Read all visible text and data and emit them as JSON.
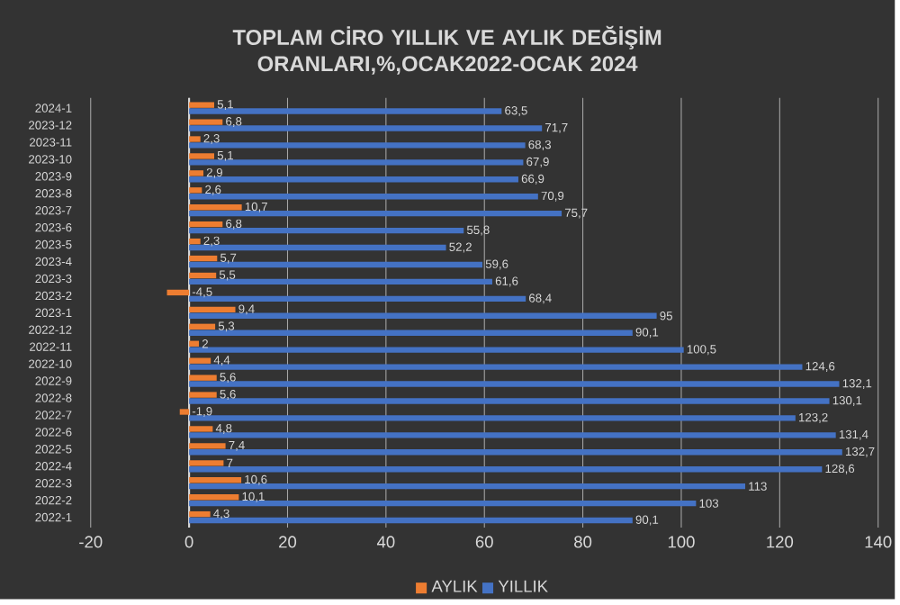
{
  "chart_data": {
    "type": "bar",
    "orientation": "horizontal",
    "title": "TOPLAM CİRO YILLIK VE AYLIK DEĞİŞİM ORANLARI,%,OCAK2022-OCAK 2024",
    "categories": [
      "2024-1",
      "2023-12",
      "2023-11",
      "2023-10",
      "2023-9",
      "2023-8",
      "2023-7",
      "2023-6",
      "2023-5",
      "2023-4",
      "2023-3",
      "2023-2",
      "2023-1",
      "2022-12",
      "2022-11",
      "2022-10",
      "2022-9",
      "2022-8",
      "2022-7",
      "2022-6",
      "2022-5",
      "2022-4",
      "2022-3",
      "2022-2",
      "2022-1"
    ],
    "series": [
      {
        "name": "AYLIK",
        "color": "#ed7d31",
        "values": [
          5.1,
          6.8,
          2.3,
          5.1,
          2.9,
          2.6,
          10.7,
          6.8,
          2.3,
          5.7,
          5.5,
          -4.5,
          9.4,
          5.3,
          2,
          4.4,
          5.6,
          5.6,
          -1.9,
          4.8,
          7.4,
          7,
          10.6,
          10.1,
          4.3
        ],
        "value_labels": [
          "5,1",
          "6,8",
          "2,3",
          "5,1",
          "2,9",
          "2,6",
          "10,7",
          "6,8",
          "2,3",
          "5,7",
          "5,5",
          "-4,5",
          "9,4",
          "5,3",
          "2",
          "4,4",
          "5,6",
          "5,6",
          "-1,9",
          "4,8",
          "7,4",
          "7",
          "10,6",
          "10,1",
          "4,3"
        ]
      },
      {
        "name": "YILLIK",
        "color": "#4472c4",
        "values": [
          63.5,
          71.7,
          68.3,
          67.9,
          66.9,
          70.9,
          75.7,
          55.8,
          52.2,
          59.6,
          61.6,
          68.4,
          95,
          90.1,
          100.5,
          124.6,
          132.1,
          130.1,
          123.2,
          131.4,
          132.7,
          128.6,
          113,
          103,
          90.1
        ],
        "value_labels": [
          "63,5",
          "71,7",
          "68,3",
          "67,9",
          "66,9",
          "70,9",
          "75,7",
          "55,8",
          "52,2",
          "59,6",
          "61,6",
          "68,4",
          "95",
          "90,1",
          "100,5",
          "124,6",
          "132,1",
          "130,1",
          "123,2",
          "131,4",
          "132,7",
          "128,6",
          "113",
          "103",
          "90,1"
        ]
      }
    ],
    "xlim": [
      -20,
      140
    ],
    "xticks": [
      -20,
      0,
      20,
      40,
      60,
      80,
      100,
      120,
      140
    ],
    "grid": "x",
    "legend": "bottom"
  }
}
